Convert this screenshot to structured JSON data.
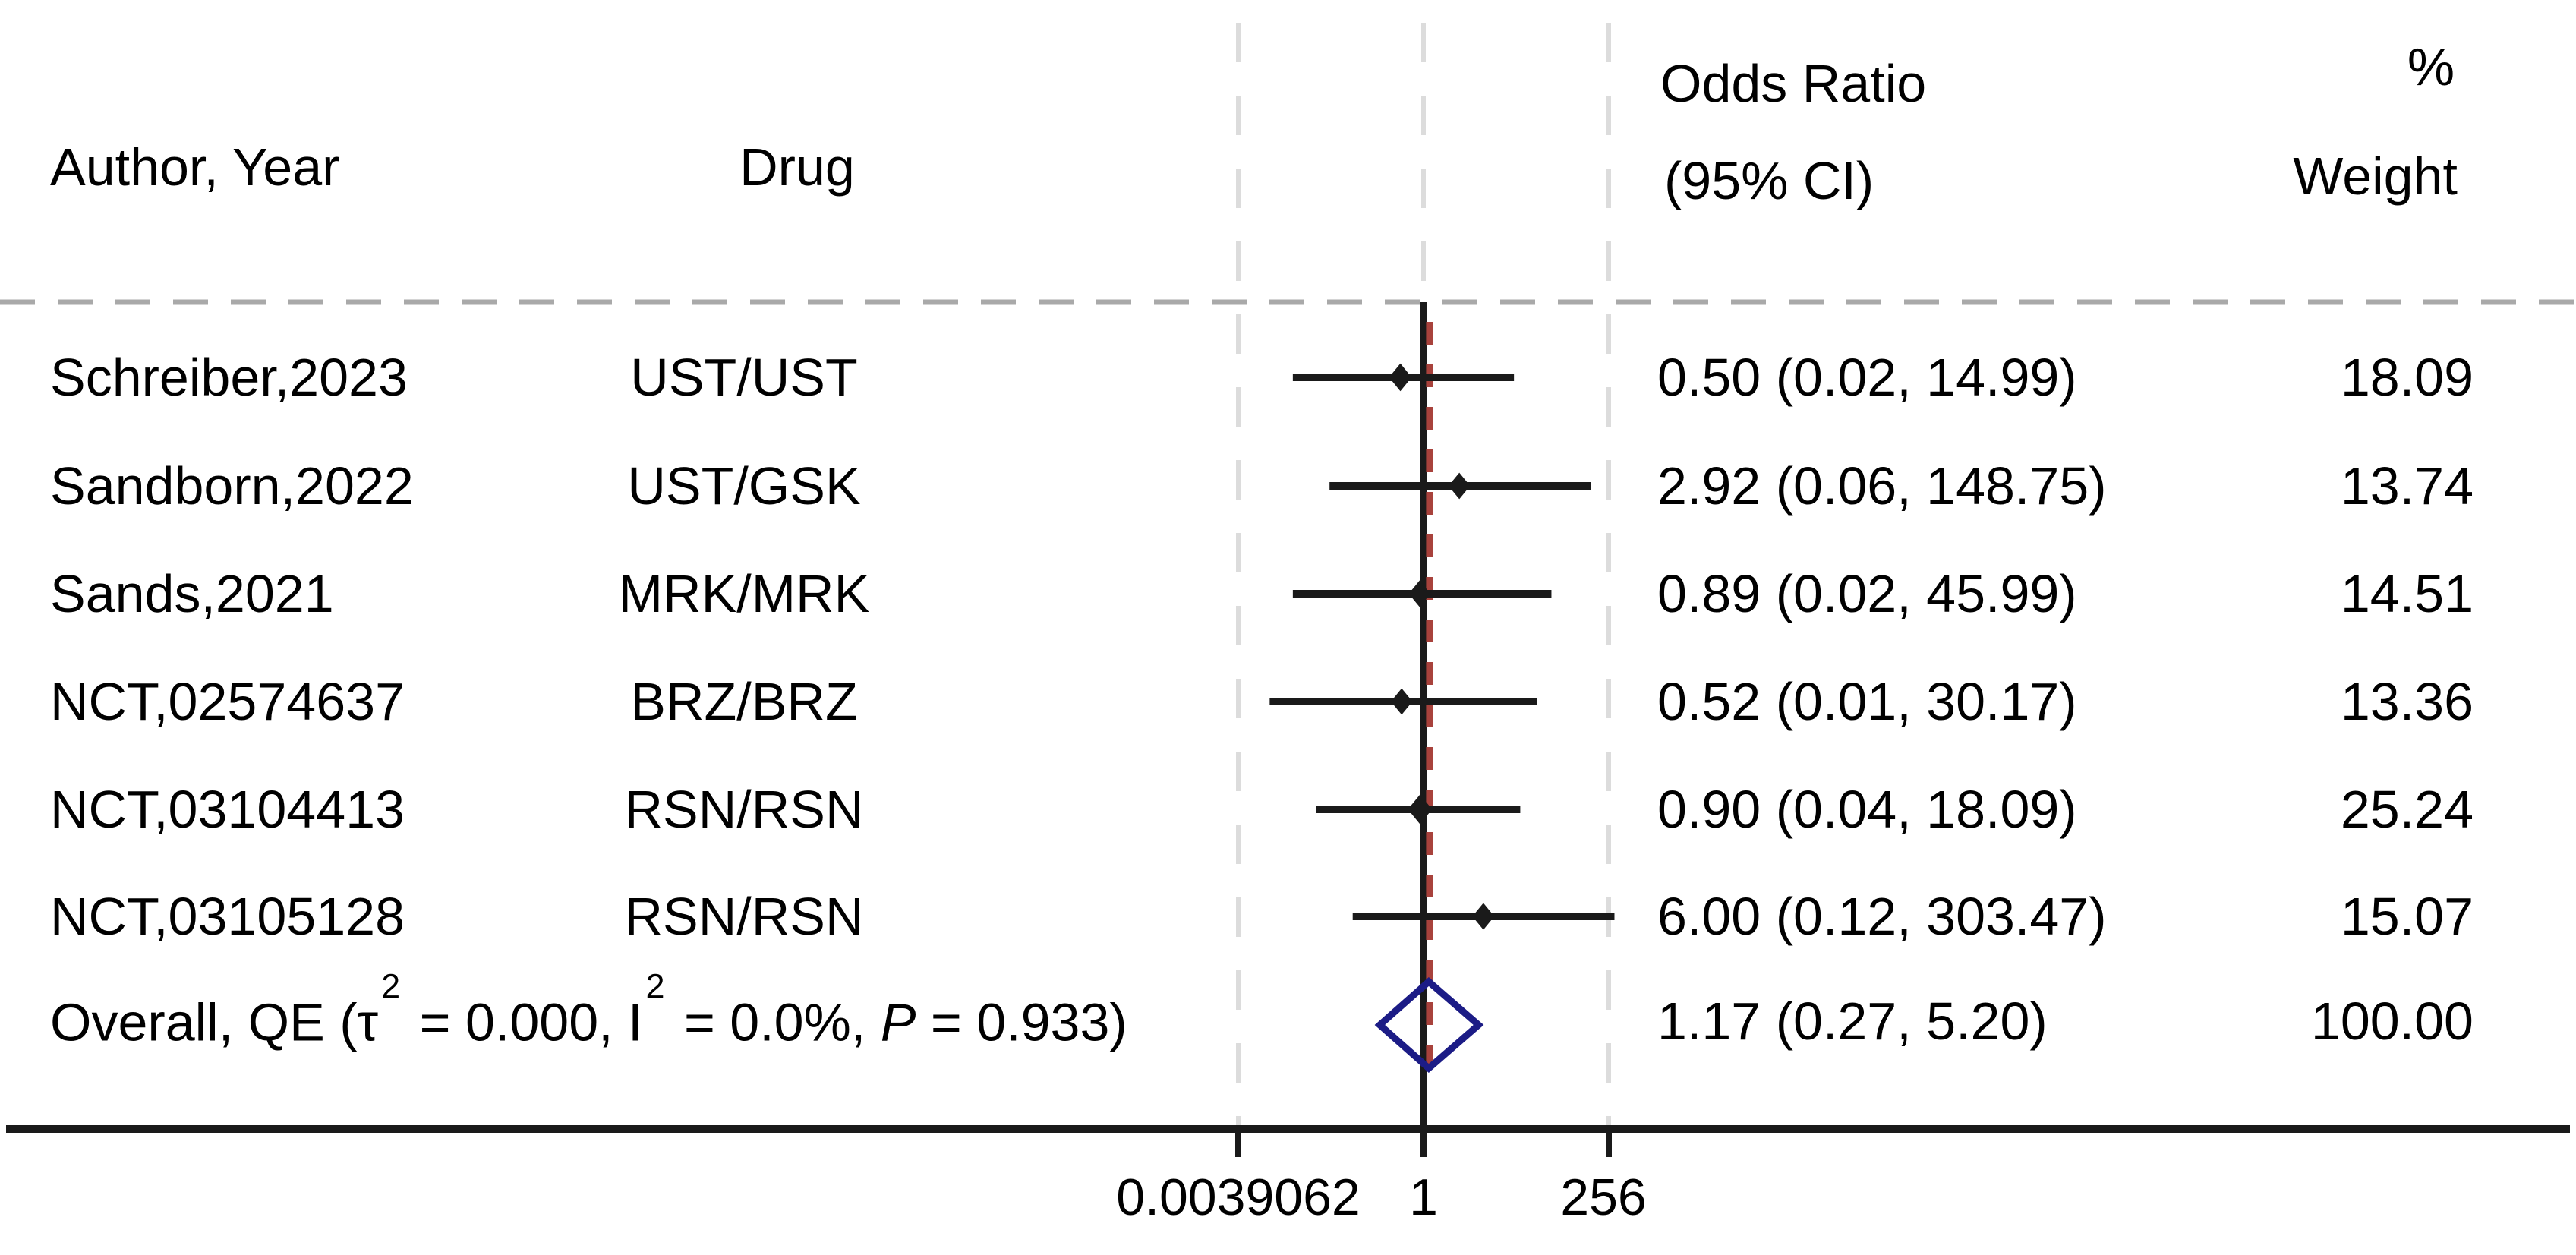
{
  "header": {
    "author_year": "Author, Year",
    "drug": "Drug",
    "or_line1": "Odds Ratio",
    "or_line2": "(95% CI)",
    "pct": "%",
    "weight": "Weight"
  },
  "chart_data": {
    "type": "forest",
    "x_scale": "log2",
    "x_axis": {
      "ticks": [
        0.0039062,
        1,
        256
      ],
      "tick_labels": [
        "0.0039062",
        "1",
        "256"
      ],
      "null_line": 1,
      "overall_line": 1.17
    },
    "grid": "dashed vertical gridlines at min/max ticks, dashed horizontal separator under header",
    "legend_position": "none",
    "colors": {
      "data": "#1a1a1a",
      "diamond": "#1c1c86",
      "overall_ref_line": "#a8423c",
      "separator": "#a9a9a9",
      "gridline": "#dcdcdc"
    },
    "studies": [
      {
        "author": "Schreiber,2023",
        "drug": "UST/UST",
        "or": 0.5,
        "ci_low": 0.02,
        "ci_high": 14.99,
        "or_ci": "0.50 (0.02, 14.99)",
        "weight": "18.09",
        "weight_value": 18.09
      },
      {
        "author": "Sandborn,2022",
        "drug": "UST/GSK",
        "or": 2.92,
        "ci_low": 0.06,
        "ci_high": 148.75,
        "or_ci": "2.92 (0.06, 148.75)",
        "weight": "13.74",
        "weight_value": 13.74
      },
      {
        "author": "Sands,2021",
        "drug": "MRK/MRK",
        "or": 0.89,
        "ci_low": 0.02,
        "ci_high": 45.99,
        "or_ci": "0.89 (0.02, 45.99)",
        "weight": "14.51",
        "weight_value": 14.51
      },
      {
        "author": "NCT,02574637",
        "drug": "BRZ/BRZ",
        "or": 0.52,
        "ci_low": 0.01,
        "ci_high": 30.17,
        "or_ci": "0.52 (0.01, 30.17)",
        "weight": "13.36",
        "weight_value": 13.36
      },
      {
        "author": "NCT,03104413",
        "drug": "RSN/RSN",
        "or": 0.9,
        "ci_low": 0.04,
        "ci_high": 18.09,
        "or_ci": "0.90 (0.04, 18.09)",
        "weight": "25.24",
        "weight_value": 25.24
      },
      {
        "author": "NCT,03105128",
        "drug": "RSN/RSN",
        "or": 6.0,
        "ci_low": 0.12,
        "ci_high": 303.47,
        "or_ci": "6.00 (0.12, 303.47)",
        "weight": "15.07",
        "weight_value": 15.07
      }
    ],
    "overall": {
      "or": 1.17,
      "ci_low": 0.27,
      "ci_high": 5.2,
      "or_ci": "1.17 (0.27, 5.20)",
      "weight": "100.00",
      "label_prefix": "Overall, QE (τ",
      "label_sup1": "2",
      "label_mid1": " = 0.000, I",
      "label_sup2": "2",
      "label_mid2": " = 0.0%, ",
      "label_p": "P",
      "label_suffix": " = 0.933)"
    }
  }
}
